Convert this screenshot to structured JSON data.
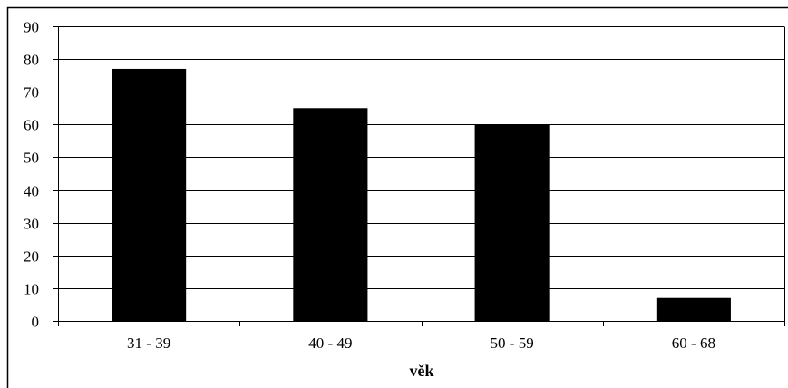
{
  "chart_data": {
    "type": "bar",
    "title": "",
    "xlabel": "věk",
    "ylabel": "",
    "categories": [
      "31 - 39",
      "40 - 49",
      "50 - 59",
      "60 - 68"
    ],
    "values": [
      77,
      65,
      60,
      7
    ],
    "ylim": [
      0,
      90
    ],
    "yticks": [
      0,
      10,
      20,
      30,
      40,
      50,
      60,
      70,
      80,
      90
    ],
    "grid": true,
    "legend": "none",
    "colors": {
      "bar": "#000000",
      "grid": "#000000",
      "background": "#ffffff"
    }
  }
}
